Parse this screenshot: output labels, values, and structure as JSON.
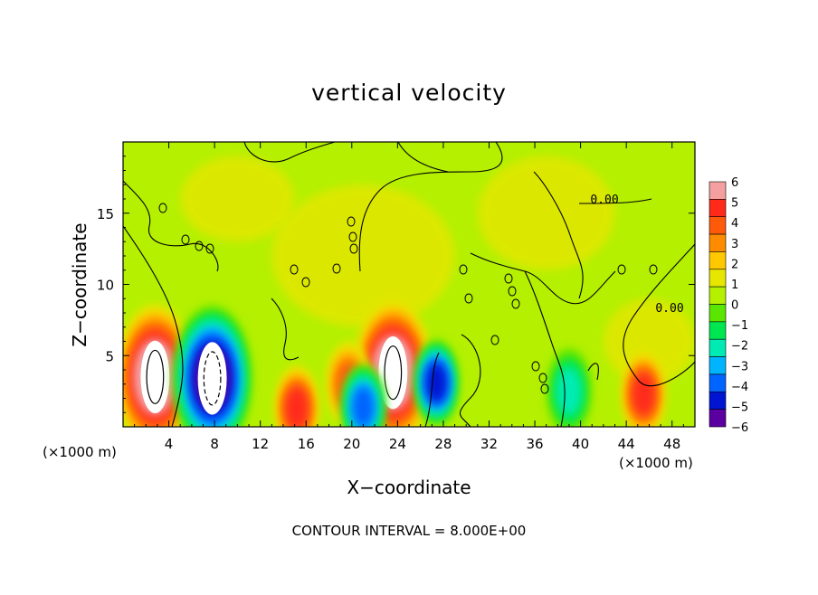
{
  "chart_data": {
    "type": "heatmap",
    "title": "vertical velocity",
    "xlabel": "X−coordinate",
    "ylabel": "Z−coordinate",
    "x_unit": "(×1000 m)",
    "xlim": [
      0,
      50
    ],
    "ylim": [
      0,
      20
    ],
    "x_ticks": [
      4,
      8,
      12,
      16,
      20,
      24,
      28,
      32,
      36,
      40,
      44,
      48
    ],
    "y_ticks": [
      5,
      10,
      15
    ],
    "colorbar": {
      "ticks": [
        6,
        5,
        4,
        3,
        2,
        1,
        0,
        -1,
        -2,
        -3,
        -4,
        -5,
        -6
      ],
      "colors": [
        "#f4a0a0",
        "#ff2a1a",
        "#ff5a0a",
        "#ff8c00",
        "#ffc800",
        "#e6e600",
        "#b4f000",
        "#5ae600",
        "#00e650",
        "#00ebb4",
        "#00b4ff",
        "#0064ff",
        "#0014d2",
        "#5a00a0"
      ]
    },
    "contour_labels": [
      "0.00",
      "0.00"
    ],
    "contour_interval": "CONTOUR INTERVAL = 8.000E+00",
    "features": [
      {
        "x": 2.8,
        "z": 3.5,
        "w": 6.5,
        "type": "updraft"
      },
      {
        "x": 7.8,
        "z": 3.4,
        "w": -7.0,
        "type": "downdraft"
      },
      {
        "x": 23.6,
        "z": 3.8,
        "w": 6.8,
        "type": "updraft"
      },
      {
        "x": 27.4,
        "z": 3.1,
        "w": -5.8,
        "type": "downdraft"
      },
      {
        "x": 15.2,
        "z": 1.3,
        "w": 4.5,
        "type": "updraft"
      },
      {
        "x": 45.5,
        "z": 2.3,
        "w": 4.8,
        "type": "updraft"
      },
      {
        "x": 19.7,
        "z": 3.0,
        "w": 3.5,
        "type": "updraft"
      },
      {
        "x": 21.0,
        "z": 1.4,
        "w": -4.5,
        "type": "downdraft"
      },
      {
        "x": 39.0,
        "z": 2.5,
        "w": -3.0,
        "type": "downdraft"
      }
    ]
  }
}
